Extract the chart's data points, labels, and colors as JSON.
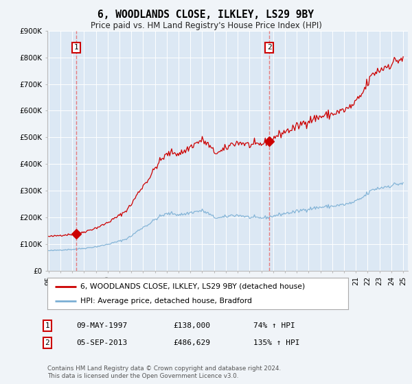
{
  "title": "6, WOODLANDS CLOSE, ILKLEY, LS29 9BY",
  "subtitle": "Price paid vs. HM Land Registry's House Price Index (HPI)",
  "property_label": "6, WOODLANDS CLOSE, ILKLEY, LS29 9BY (detached house)",
  "hpi_label": "HPI: Average price, detached house, Bradford",
  "transaction1": {
    "label": "1",
    "date": "09-MAY-1997",
    "price": 138000,
    "hpi_pct": "74% ↑ HPI"
  },
  "transaction2": {
    "label": "2",
    "date": "05-SEP-2013",
    "price": 486629,
    "hpi_pct": "135% ↑ HPI"
  },
  "footnote": "Contains HM Land Registry data © Crown copyright and database right 2024.\nThis data is licensed under the Open Government Licence v3.0.",
  "property_color": "#cc0000",
  "hpi_color": "#7bafd4",
  "dashed_line_color": "#e87070",
  "background_color": "#f0f4f8",
  "plot_bg": "#dce8f4",
  "ylim": [
    0,
    900000
  ],
  "xlim_start": 1994.9,
  "xlim_end": 2025.4,
  "t1_x": 1997.36,
  "t2_x": 2013.67,
  "t1_price": 138000,
  "t2_price": 486629
}
